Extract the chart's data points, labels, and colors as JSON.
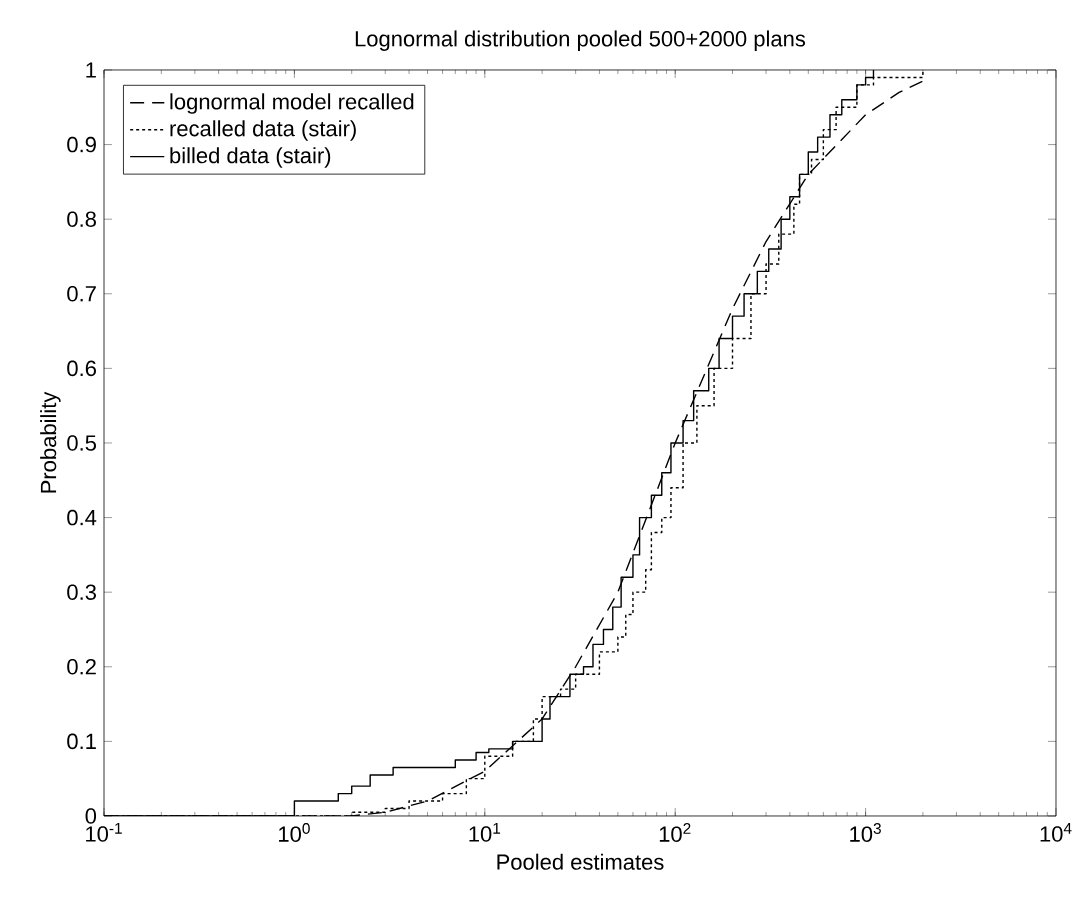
{
  "chart_data": {
    "type": "step",
    "title": "Lognormal distribution pooled 500+2000 plans",
    "xlabel": "Pooled estimates",
    "ylabel": "Probability",
    "log": "x",
    "legend": "top left",
    "grid": false,
    "xlim": [
      0.1,
      10000
    ],
    "ylim": [
      0,
      1
    ],
    "xticks": [
      {
        "value": 0.1,
        "label": "10$^{-1}$"
      },
      {
        "value": 1,
        "label": "10$^{0}$"
      },
      {
        "value": 10,
        "label": "10$^{1}$"
      },
      {
        "value": 100,
        "label": "10$^{2}$"
      },
      {
        "value": 1000,
        "label": "10$^{3}$"
      },
      {
        "value": 10000,
        "label": "10$^{4}$"
      }
    ],
    "yticks": [
      0,
      0.1,
      0.2,
      0.3,
      0.4,
      0.5,
      0.6,
      0.7,
      0.8,
      0.9,
      1
    ],
    "series": [
      {
        "name": "lognormal model recalled",
        "type": "line",
        "line_style": "dashed",
        "color": "#000000",
        "x": [
          0.1,
          1,
          2,
          3,
          5,
          10,
          20,
          30,
          50,
          100,
          200,
          300,
          500,
          1000,
          1500,
          2000
        ],
        "values": [
          0,
          0,
          0,
          0.005,
          0.02,
          0.06,
          0.13,
          0.2,
          0.3,
          0.5,
          0.68,
          0.77,
          0.86,
          0.94,
          0.97,
          0.985
        ]
      },
      {
        "name": "recalled data (stair)",
        "line_style": "dotted",
        "color": "#000000",
        "x": [
          0.1,
          2,
          3,
          4,
          6,
          8,
          10,
          14,
          18,
          20,
          25,
          30,
          40,
          50,
          55,
          60,
          70,
          75,
          85,
          95,
          110,
          130,
          160,
          200,
          250,
          300,
          350,
          420,
          450,
          520,
          600,
          700,
          900,
          1100,
          2000
        ],
        "values": [
          0,
          0.005,
          0.01,
          0.02,
          0.03,
          0.05,
          0.08,
          0.1,
          0.13,
          0.16,
          0.17,
          0.19,
          0.22,
          0.24,
          0.27,
          0.3,
          0.33,
          0.38,
          0.4,
          0.44,
          0.5,
          0.55,
          0.6,
          0.64,
          0.7,
          0.74,
          0.78,
          0.82,
          0.86,
          0.88,
          0.92,
          0.95,
          0.98,
          0.99,
          1
        ]
      },
      {
        "name": "billed data (stair)",
        "line_style": "solid",
        "color": "#000000",
        "x": [
          0.1,
          1,
          1.7,
          2,
          2.5,
          3.3,
          7,
          9,
          10.5,
          14,
          20,
          22,
          28,
          33,
          37,
          42,
          47,
          52,
          60,
          65,
          75,
          85,
          95,
          110,
          125,
          150,
          170,
          200,
          230,
          270,
          310,
          360,
          400,
          450,
          500,
          560,
          650,
          750,
          900,
          1000,
          1100
        ],
        "values": [
          0,
          0.02,
          0.03,
          0.04,
          0.055,
          0.065,
          0.075,
          0.085,
          0.09,
          0.1,
          0.13,
          0.16,
          0.19,
          0.2,
          0.23,
          0.25,
          0.28,
          0.32,
          0.35,
          0.4,
          0.43,
          0.46,
          0.5,
          0.53,
          0.57,
          0.6,
          0.64,
          0.67,
          0.7,
          0.73,
          0.76,
          0.8,
          0.83,
          0.86,
          0.89,
          0.91,
          0.94,
          0.96,
          0.98,
          0.99,
          1
        ]
      }
    ]
  }
}
